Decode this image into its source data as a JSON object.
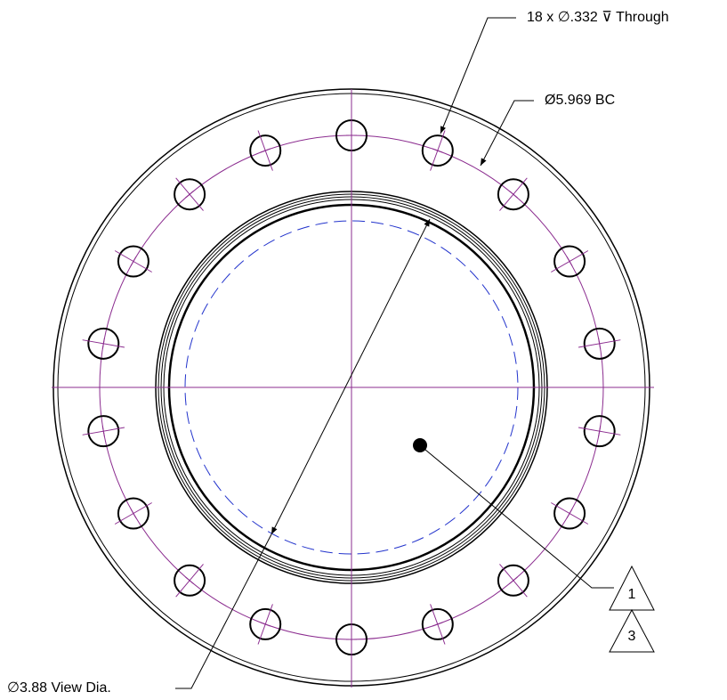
{
  "annotations": {
    "holes": "18 x ∅.332 ⊽ Through",
    "bolt_circle": "Ø5.969 BC",
    "view_diameter": "∅3.88 View Dia.",
    "balloon_top": "1",
    "balloon_bottom": "3"
  }
}
